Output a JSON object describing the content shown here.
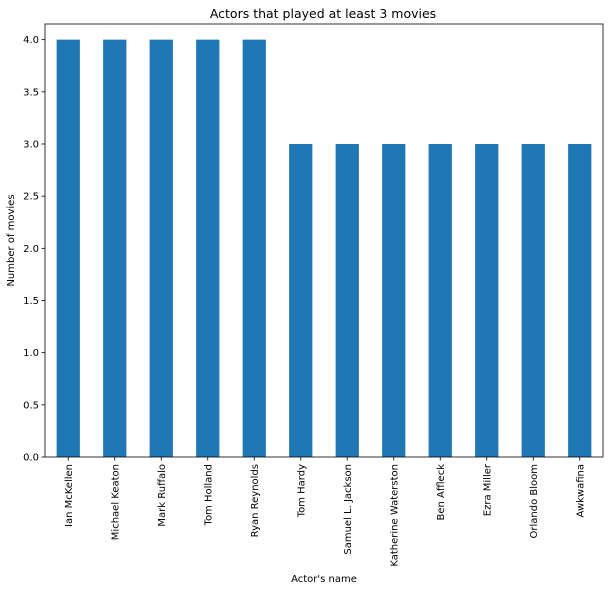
{
  "chart_data": {
    "type": "bar",
    "title": "Actors that played at least 3 movies",
    "xlabel": "Actor's name",
    "ylabel": "Number of movies",
    "categories": [
      "Ian McKellen",
      "Michael Keaton",
      "Mark Ruffalo",
      "Tom Holland",
      "Ryan Reynolds",
      "Tom Hardy",
      "Samuel L. Jackson",
      "Katherine Waterston",
      "Ben Affleck",
      "Ezra Miller",
      "Orlando Bloom",
      "Awkwafina"
    ],
    "values": [
      4,
      4,
      4,
      4,
      4,
      3,
      3,
      3,
      3,
      3,
      3,
      3
    ],
    "ylim": [
      0,
      4.15
    ],
    "yticks": [
      "0.0",
      "0.5",
      "1.0",
      "1.5",
      "2.0",
      "2.5",
      "3.0",
      "3.5",
      "4.0"
    ],
    "bar_color": "#1f77b4",
    "grid": false,
    "legend": "none"
  }
}
